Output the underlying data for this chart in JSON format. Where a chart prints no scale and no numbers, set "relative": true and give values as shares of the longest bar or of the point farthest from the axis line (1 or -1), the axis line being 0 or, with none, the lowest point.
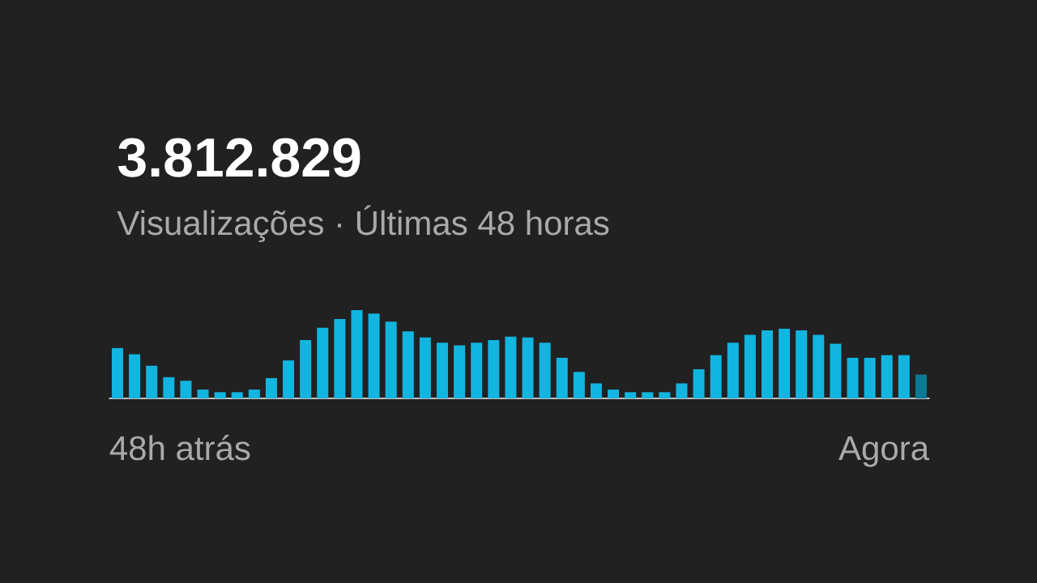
{
  "chart_data": {
    "type": "bar",
    "title": "3.812.829",
    "subtitle": "Visualizações · Últimas 48 horas",
    "relative": true,
    "annotations": [
      "48h atrás",
      "Agora"
    ],
    "categories": [
      null,
      null,
      null,
      null,
      null,
      null,
      null,
      null,
      null,
      null,
      null,
      null,
      null,
      null,
      null,
      null,
      null,
      null,
      null,
      null,
      null,
      null,
      null,
      null,
      null,
      null,
      null,
      null,
      null,
      null,
      null,
      null,
      null,
      null,
      null,
      null,
      null,
      null,
      null,
      null,
      null,
      null,
      null,
      null,
      null,
      null,
      null,
      null
    ],
    "values": [
      0.57,
      0.5,
      0.37,
      0.24,
      0.2,
      0.1,
      0.07,
      0.07,
      0.1,
      0.23,
      0.43,
      0.66,
      0.8,
      0.9,
      1,
      0.96,
      0.87,
      0.76,
      0.69,
      0.63,
      0.6,
      0.63,
      0.66,
      0.7,
      0.69,
      0.63,
      0.46,
      0.3,
      0.17,
      0.1,
      0.07,
      0.07,
      0.07,
      0.17,
      0.33,
      0.49,
      0.63,
      0.72,
      0.77,
      0.79,
      0.77,
      0.72,
      0.62,
      0.46,
      0.46,
      0.49,
      0.49,
      0.27
    ],
    "colors": [
      "#12b5e0",
      "#12b5e0",
      "#12b5e0",
      "#12b5e0",
      "#12b5e0",
      "#12b5e0",
      "#12b5e0",
      "#12b5e0",
      "#12b5e0",
      "#12b5e0",
      "#12b5e0",
      "#12b5e0",
      "#12b5e0",
      "#12b5e0",
      "#12b5e0",
      "#12b5e0",
      "#12b5e0",
      "#12b5e0",
      "#12b5e0",
      "#12b5e0",
      "#12b5e0",
      "#12b5e0",
      "#12b5e0",
      "#12b5e0",
      "#12b5e0",
      "#12b5e0",
      "#12b5e0",
      "#12b5e0",
      "#12b5e0",
      "#12b5e0",
      "#12b5e0",
      "#12b5e0",
      "#12b5e0",
      "#12b5e0",
      "#12b5e0",
      "#12b5e0",
      "#12b5e0",
      "#12b5e0",
      "#12b5e0",
      "#12b5e0",
      "#12b5e0",
      "#12b5e0",
      "#12b5e0",
      "#12b5e0",
      "#12b5e0",
      "#12b5e0",
      "#12b5e0",
      "#0b7a94"
    ]
  }
}
